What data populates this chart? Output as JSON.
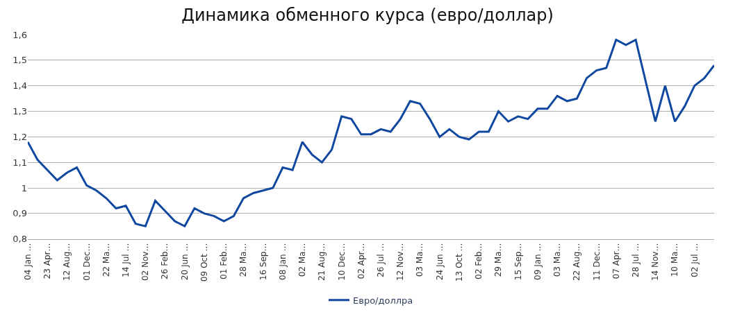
{
  "chart_data": {
    "type": "line",
    "title": "Динамика обменного курса (евро/доллар)",
    "categories": [
      "04 Jan …",
      null,
      "23 Apr…",
      null,
      "12 Aug…",
      null,
      "01 Dec…",
      null,
      "22 Ma…",
      null,
      "14 Jul …",
      null,
      "02 Nov…",
      null,
      "26 Feb…",
      null,
      "20 Jun …",
      null,
      "09 Oct …",
      null,
      "01 Feb…",
      null,
      "28 Ma…",
      null,
      "16 Sep…",
      null,
      "08 Jan …",
      null,
      "02 Ma…",
      null,
      "21 Aug…",
      null,
      "10 Dec…",
      null,
      "02 Apr…",
      null,
      "26 Jul …",
      null,
      "12 Nov…",
      null,
      "03 Ma…",
      null,
      "24 Jun …",
      null,
      "13 Oct …",
      null,
      "02 Feb…",
      null,
      "29 Ma…",
      null,
      "15 Sep…",
      null,
      "09 Jan …",
      null,
      "03 Ma…",
      null,
      "22 Aug…",
      null,
      "11 Dec…",
      null,
      "07 Apr…",
      null,
      "28 Jul …",
      null,
      "14 Nov…",
      null,
      "10 Ma…",
      null,
      "02 Jul …",
      null,
      null
    ],
    "series": [
      {
        "name": "Евро/доллра",
        "color": "#1048a0",
        "values": [
          1.18,
          1.11,
          1.07,
          1.03,
          1.06,
          1.08,
          1.01,
          0.99,
          0.96,
          0.92,
          0.93,
          0.86,
          0.85,
          0.95,
          0.91,
          0.87,
          0.85,
          0.92,
          0.9,
          0.89,
          0.87,
          0.89,
          0.96,
          0.98,
          0.99,
          1.0,
          1.08,
          1.07,
          1.18,
          1.13,
          1.1,
          1.15,
          1.28,
          1.27,
          1.21,
          1.21,
          1.23,
          1.22,
          1.27,
          1.34,
          1.33,
          1.27,
          1.2,
          1.23,
          1.2,
          1.19,
          1.22,
          1.22,
          1.3,
          1.26,
          1.28,
          1.27,
          1.31,
          1.31,
          1.36,
          1.34,
          1.35,
          1.43,
          1.46,
          1.47,
          1.58,
          1.56,
          1.58,
          1.42,
          1.26,
          1.4,
          1.26,
          1.32,
          1.4,
          1.43,
          1.48
        ]
      }
    ],
    "ylim": [
      0.8,
      1.6
    ],
    "yticks": [
      {
        "value": 0.8,
        "label": "0,8"
      },
      {
        "value": 0.9,
        "label": "0,9"
      },
      1,
      {
        "value": 1.1,
        "label": "1,1"
      },
      {
        "value": 1.2,
        "label": "1,2"
      },
      {
        "value": 1.3,
        "label": "1,3"
      },
      {
        "value": 1.4,
        "label": "1,4"
      },
      {
        "value": 1.5,
        "label": "1,5"
      },
      {
        "value": 1.6,
        "label": "1,6"
      }
    ],
    "grid": "y",
    "legend": "bottom",
    "marker": "none",
    "line_style": "solid"
  }
}
